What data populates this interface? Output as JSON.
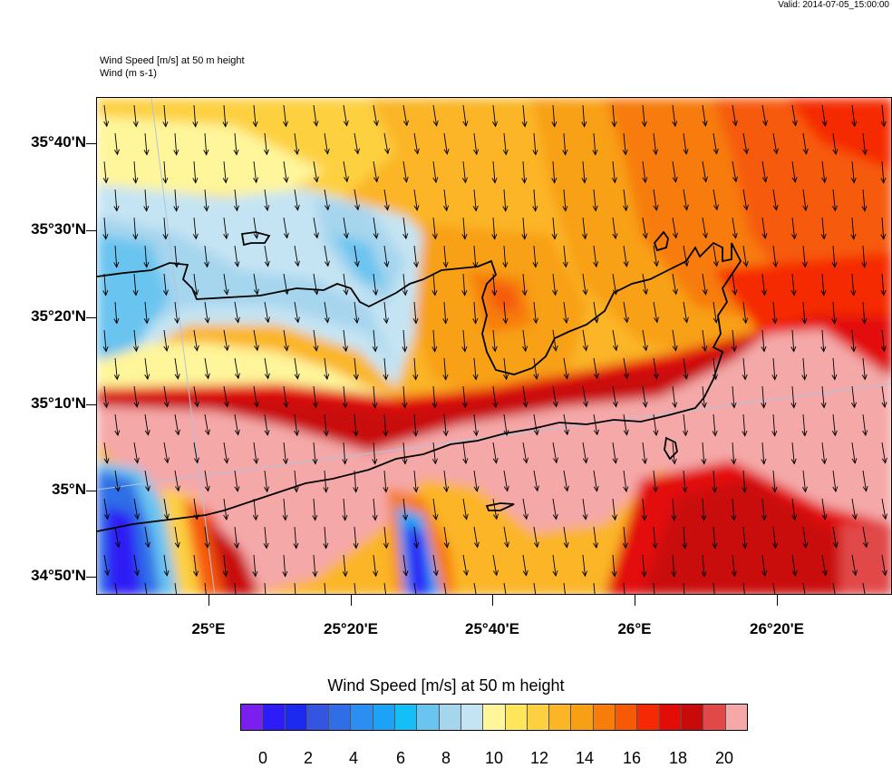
{
  "header": {
    "valid": "Valid: 2014-07-05_15:00:00",
    "field_title": "Wind Speed [m/s] at 50 m height",
    "vector_title": "Wind   (m s-1)"
  },
  "map": {
    "lat_labels": [
      "35°40'N",
      "35°30'N",
      "35°20'N",
      "35°10'N",
      "35°N",
      "34°50'N"
    ],
    "lon_labels": [
      "25°E",
      "25°20'E",
      "25°40'E",
      "26°E",
      "26°20'E"
    ],
    "wind_direction": "north-northwest to south-southeast",
    "colors": {
      "coast": "#000000",
      "grid": "#b0c4de"
    }
  },
  "colorbar": {
    "title": "Wind Speed [m/s] at 50 m height",
    "labels": [
      "0",
      "2",
      "4",
      "6",
      "8",
      "10",
      "12",
      "14",
      "16",
      "18",
      "20"
    ],
    "colors": [
      "#7a1ff0",
      "#2d1cf5",
      "#1c2af0",
      "#3355e0",
      "#2f6ee6",
      "#2a8ef2",
      "#1ca3f7",
      "#14bff7",
      "#6ac4f0",
      "#a6d5ee",
      "#c5e4f3",
      "#fff59a",
      "#fde65a",
      "#fdd040",
      "#fbb526",
      "#f8a013",
      "#f77c0a",
      "#f65a07",
      "#f52a05",
      "#e30d07",
      "#c90a0a",
      "#e14949",
      "#f5a8a8"
    ]
  }
}
